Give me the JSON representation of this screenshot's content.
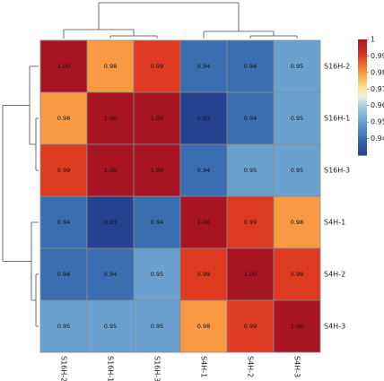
{
  "chart_data": {
    "type": "heatmap",
    "title": "",
    "xlabel": "",
    "ylabel": "",
    "rows": [
      "S16H-2",
      "S16H-1",
      "S16H-3",
      "S4H-1",
      "S4H-2",
      "S4H-3"
    ],
    "columns": [
      "S16H-2",
      "S16H-1",
      "S16H-3",
      "S4H-1",
      "S4H-2",
      "S4H-3"
    ],
    "values": [
      [
        1.0,
        0.98,
        0.99,
        0.94,
        0.94,
        0.95
      ],
      [
        0.98,
        1.0,
        1.0,
        0.93,
        0.94,
        0.95
      ],
      [
        0.99,
        1.0,
        1.0,
        0.94,
        0.95,
        0.95
      ],
      [
        0.94,
        0.93,
        0.94,
        1.0,
        0.99,
        0.98
      ],
      [
        0.94,
        0.94,
        0.95,
        0.99,
        1.0,
        0.99
      ],
      [
        0.95,
        0.95,
        0.95,
        0.98,
        0.99,
        1.0
      ]
    ],
    "value_labels": [
      [
        "1.00",
        "0.98",
        "0.99",
        "0.94",
        "0.94",
        "0.95"
      ],
      [
        "0.98",
        "1.00",
        "1.00",
        "0.93",
        "0.94",
        "0.95"
      ],
      [
        "0.99",
        "1.00",
        "1.00",
        "0.94",
        "0.95",
        "0.95"
      ],
      [
        "0.94",
        "0.93",
        "0.94",
        "1.00",
        "0.99",
        "0.98"
      ],
      [
        "0.94",
        "0.94",
        "0.95",
        "0.99",
        "1.00",
        "0.99"
      ],
      [
        "0.95",
        "0.95",
        "0.95",
        "0.98",
        "0.99",
        "1.00"
      ]
    ],
    "legend": {
      "ticks": [
        {
          "label": "1",
          "value": 1.0
        },
        {
          "label": "0.99",
          "value": 0.99
        },
        {
          "label": "0.98",
          "value": 0.98
        },
        {
          "label": "0.97",
          "value": 0.97
        },
        {
          "label": "0.96",
          "value": 0.96
        },
        {
          "label": "0.95",
          "value": 0.95
        },
        {
          "label": "0.94",
          "value": 0.94
        }
      ],
      "placement": "right",
      "range": [
        0.93,
        1.0
      ]
    },
    "color_scale": {
      "low": "#313695",
      "mid": "#ffffbf",
      "high": "#a50026",
      "stops": [
        {
          "value": 0.93,
          "color": "#26418f"
        },
        {
          "value": 0.94,
          "color": "#3a6eb0"
        },
        {
          "value": 0.95,
          "color": "#6aa1cf"
        },
        {
          "value": 0.96,
          "color": "#a7cfe2"
        },
        {
          "value": 0.965,
          "color": "#e6f0e4"
        },
        {
          "value": 0.97,
          "color": "#ffe8a0"
        },
        {
          "value": 0.975,
          "color": "#fcc064"
        },
        {
          "value": 0.98,
          "color": "#f89a44"
        },
        {
          "value": 0.99,
          "color": "#de3a22"
        },
        {
          "value": 1.0,
          "color": "#a71522"
        }
      ]
    },
    "dendrogram": {
      "row_clusters": [
        [
          "S16H-2"
        ],
        [
          "S16H-1",
          "S16H-3"
        ],
        [
          "S4H-1"
        ],
        [
          "S4H-2",
          "S4H-3"
        ]
      ],
      "column_clusters": [
        [
          "S16H-2"
        ],
        [
          "S16H-1",
          "S16H-3"
        ],
        [
          "S4H-1"
        ],
        [
          "S4H-2",
          "S4H-3"
        ]
      ]
    }
  }
}
